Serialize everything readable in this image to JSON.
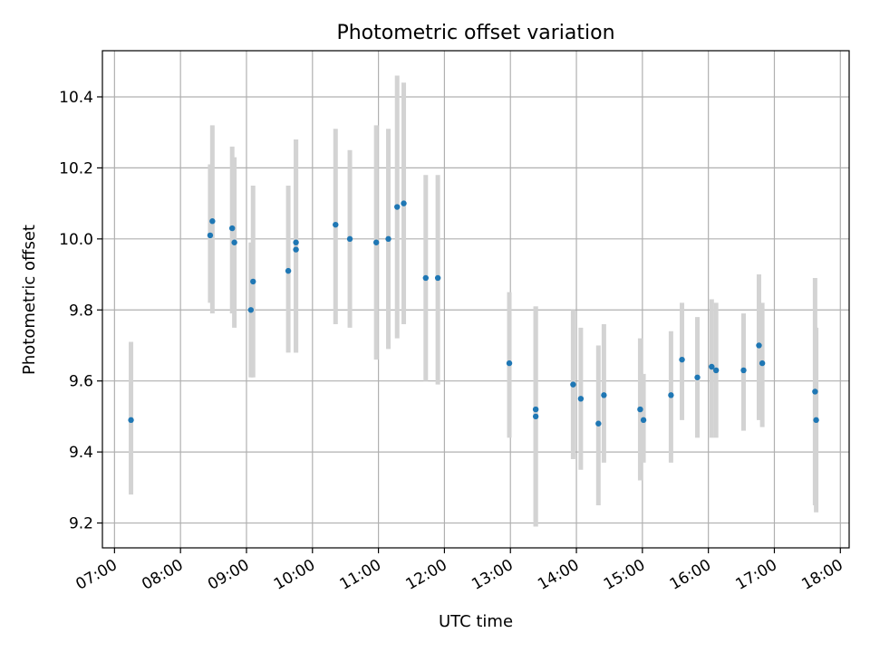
{
  "chart_data": {
    "type": "scatter",
    "title": "Photometric offset variation",
    "xlabel": "UTC time",
    "ylabel": "Photometric offset",
    "xlim": [
      "06:49",
      "18:08"
    ],
    "ylim": [
      9.13,
      10.53
    ],
    "xticks": [
      "07:00",
      "08:00",
      "09:00",
      "10:00",
      "11:00",
      "12:00",
      "13:00",
      "14:00",
      "15:00",
      "16:00",
      "17:00",
      "18:00"
    ],
    "yticks": [
      9.2,
      9.4,
      9.6,
      9.8,
      10.0,
      10.2,
      10.4
    ],
    "ytick_labels": [
      "9.2",
      "9.4",
      "9.6",
      "9.8",
      "10.0",
      "10.2",
      "10.4"
    ],
    "grid": true,
    "x_tick_rotation_deg": 30,
    "colors": {
      "points": "#1f77b4",
      "errorbars": "#d3d3d3",
      "grid": "#b0b0b0"
    },
    "points": [
      {
        "x": "07:15",
        "y": 9.49,
        "ylow": 9.28,
        "yhigh": 9.71
      },
      {
        "x": "08:27",
        "y": 10.01,
        "ylow": 9.82,
        "yhigh": 10.21
      },
      {
        "x": "08:29",
        "y": 10.05,
        "ylow": 9.79,
        "yhigh": 10.32
      },
      {
        "x": "08:47",
        "y": 10.03,
        "ylow": 9.79,
        "yhigh": 10.26
      },
      {
        "x": "08:49",
        "y": 9.99,
        "ylow": 9.75,
        "yhigh": 10.23
      },
      {
        "x": "09:04",
        "y": 9.8,
        "ylow": 9.61,
        "yhigh": 9.99
      },
      {
        "x": "09:06",
        "y": 9.88,
        "ylow": 9.61,
        "yhigh": 10.15
      },
      {
        "x": "09:38",
        "y": 9.91,
        "ylow": 9.68,
        "yhigh": 10.15
      },
      {
        "x": "09:45",
        "y": 9.99,
        "ylow": 9.68,
        "yhigh": 10.28
      },
      {
        "x": "09:45",
        "y": 9.97,
        "ylow": 9.68,
        "yhigh": 10.28
      },
      {
        "x": "10:21",
        "y": 10.04,
        "ylow": 9.76,
        "yhigh": 10.31
      },
      {
        "x": "10:34",
        "y": 10.0,
        "ylow": 9.75,
        "yhigh": 10.25
      },
      {
        "x": "10:58",
        "y": 9.99,
        "ylow": 9.66,
        "yhigh": 10.32
      },
      {
        "x": "11:09",
        "y": 10.0,
        "ylow": 9.69,
        "yhigh": 10.31
      },
      {
        "x": "11:17",
        "y": 10.09,
        "ylow": 9.72,
        "yhigh": 10.46
      },
      {
        "x": "11:23",
        "y": 10.1,
        "ylow": 9.76,
        "yhigh": 10.44
      },
      {
        "x": "11:43",
        "y": 9.89,
        "ylow": 9.6,
        "yhigh": 10.18
      },
      {
        "x": "11:54",
        "y": 9.89,
        "ylow": 9.59,
        "yhigh": 10.18
      },
      {
        "x": "12:59",
        "y": 9.65,
        "ylow": 9.44,
        "yhigh": 9.85
      },
      {
        "x": "13:23",
        "y": 9.52,
        "ylow": 9.19,
        "yhigh": 9.81
      },
      {
        "x": "13:23",
        "y": 9.5,
        "ylow": 9.19,
        "yhigh": 9.81
      },
      {
        "x": "13:57",
        "y": 9.59,
        "ylow": 9.38,
        "yhigh": 9.8
      },
      {
        "x": "14:04",
        "y": 9.55,
        "ylow": 9.35,
        "yhigh": 9.75
      },
      {
        "x": "14:20",
        "y": 9.48,
        "ylow": 9.25,
        "yhigh": 9.7
      },
      {
        "x": "14:25",
        "y": 9.56,
        "ylow": 9.37,
        "yhigh": 9.76
      },
      {
        "x": "14:58",
        "y": 9.52,
        "ylow": 9.32,
        "yhigh": 9.72
      },
      {
        "x": "15:01",
        "y": 9.49,
        "ylow": 9.37,
        "yhigh": 9.62
      },
      {
        "x": "15:26",
        "y": 9.56,
        "ylow": 9.37,
        "yhigh": 9.74
      },
      {
        "x": "15:36",
        "y": 9.66,
        "ylow": 9.49,
        "yhigh": 9.82
      },
      {
        "x": "15:50",
        "y": 9.61,
        "ylow": 9.44,
        "yhigh": 9.78
      },
      {
        "x": "16:03",
        "y": 9.64,
        "ylow": 9.44,
        "yhigh": 9.83
      },
      {
        "x": "16:07",
        "y": 9.63,
        "ylow": 9.44,
        "yhigh": 9.82
      },
      {
        "x": "16:32",
        "y": 9.63,
        "ylow": 9.46,
        "yhigh": 9.79
      },
      {
        "x": "16:46",
        "y": 9.7,
        "ylow": 9.49,
        "yhigh": 9.9
      },
      {
        "x": "16:49",
        "y": 9.65,
        "ylow": 9.47,
        "yhigh": 9.82
      },
      {
        "x": "17:37",
        "y": 9.57,
        "ylow": 9.25,
        "yhigh": 9.89
      },
      {
        "x": "17:38",
        "y": 9.49,
        "ylow": 9.23,
        "yhigh": 9.75
      }
    ]
  }
}
